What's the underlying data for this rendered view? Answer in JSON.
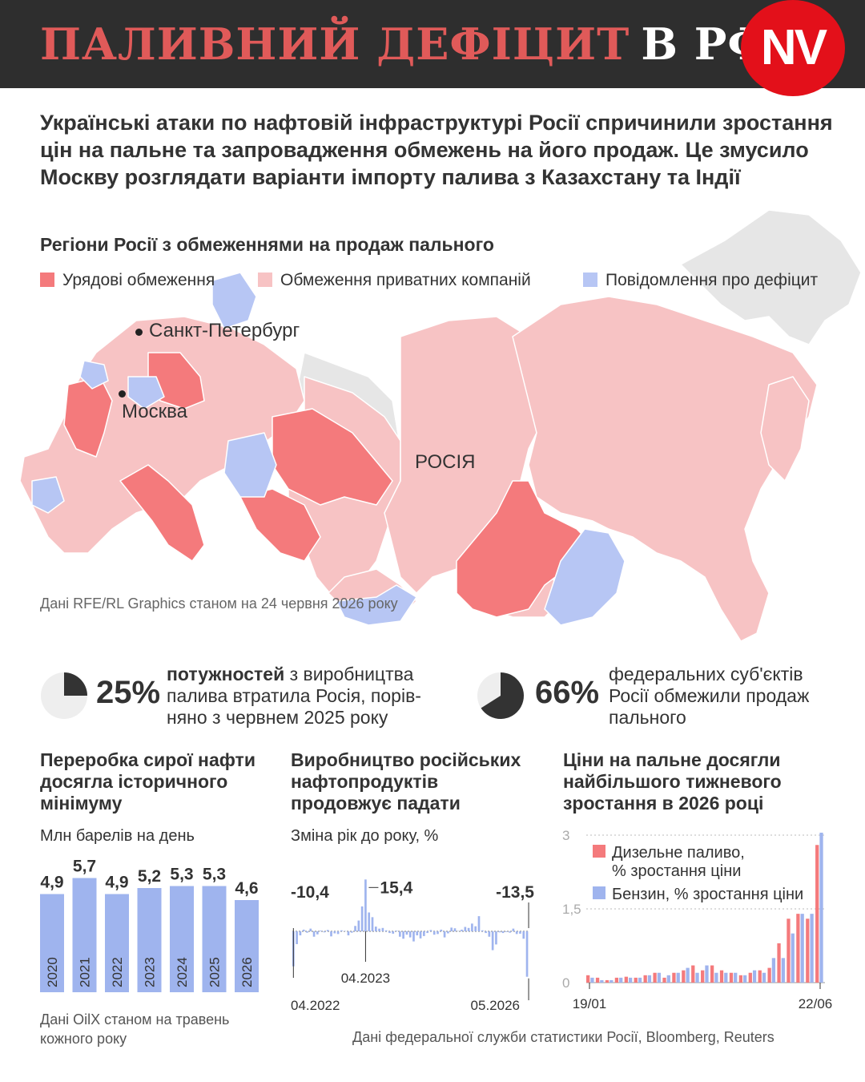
{
  "header": {
    "title_red": "ПАЛИВНИЙ ДЕФІЦИТ",
    "title_white": "В РФ",
    "logo": "NV"
  },
  "lead": "Українські атаки по нафтовій інфраструктурі Росії спричинили зростання цін на пальне та запровадження обмежень на його продаж. Це змусило Москву розглядати варіанти імпорту палива з Казахстану та Індії",
  "map": {
    "title": "Регіони Росії з обмеженнями на продаж пального",
    "legend": [
      {
        "label": "Урядові обмеження",
        "color": "#f47a7c"
      },
      {
        "label": "Обмеження приватних компаній",
        "color": "#f7c3c4"
      },
      {
        "label": "Повідомлення про дефіцит",
        "color": "#b7c6f4"
      }
    ],
    "labels": {
      "spb": "Санкт-Петербург",
      "moscow": "Москва",
      "russia": "РОСІЯ"
    },
    "source": "Дані RFE/RL Graphics станом на 24 червня 2026 року",
    "colors": {
      "other": "#e6e6e6"
    }
  },
  "stats": [
    {
      "value": "25%",
      "fraction": 0.25,
      "bold": "потужностей",
      "text": " з виробництва палива втратила Росія, порів-няно з червнем 2025 року"
    },
    {
      "value": "66%",
      "fraction": 0.66,
      "bold": "",
      "text": "федеральних суб'єктів Росії обмежили продаж пального"
    }
  ],
  "chart_data": [
    {
      "type": "bar",
      "title": "Переробка сирої нафти досягла історичного мінімуму",
      "subtitle": "Млн барелів на день",
      "categories": [
        "2020",
        "2021",
        "2022",
        "2023",
        "2024",
        "2025",
        "2026"
      ],
      "values": [
        4.9,
        5.7,
        4.9,
        5.2,
        5.3,
        5.3,
        4.6
      ],
      "value_labels": [
        "4,9",
        "5,7",
        "4,9",
        "5,2",
        "5,3",
        "5,3",
        "4,6"
      ],
      "color": "#9fb4ee",
      "source": "Дані OilX станом на травень кожного року"
    },
    {
      "type": "bar",
      "title": "Виробництво російських нафтопродуктів продовжує падати",
      "subtitle": "Зміна рік до року, %",
      "x_start": "04.2022",
      "x_end": "05.2026",
      "values": [
        -10.4,
        -3.8,
        -1.2,
        0.5,
        -0.4,
        0.8,
        -1.6,
        -0.9,
        0.2,
        -0.3,
        0.4,
        -1.5,
        -0.6,
        -0.8,
        0.3,
        0.1,
        -1.2,
        -0.4,
        1.6,
        3.2,
        7.4,
        15.4,
        5.6,
        4.2,
        1.4,
        0.8,
        1.0,
        0.3,
        -0.5,
        -0.7,
        0.2,
        -1.6,
        -2.2,
        -1.0,
        -1.8,
        -3.0,
        -1.2,
        -2.1,
        -1.4,
        -0.5,
        0.4,
        -1.0,
        -0.8,
        0.5,
        -1.8,
        -0.6,
        1.1,
        0.9,
        0.1,
        0.5,
        1.3,
        1.0,
        2.3,
        1.5,
        4.5,
        0.3,
        -0.5,
        -1.6,
        -5.6,
        -3.9,
        -0.3,
        -0.5,
        -0.2,
        -0.4,
        0.8,
        -0.8,
        -0.7,
        -2.2,
        -13.5
      ],
      "annotations": [
        {
          "label": "-10,4"
        },
        {
          "label": "15,4",
          "x": "04.2023"
        },
        {
          "label": "-13,5"
        }
      ],
      "ylim": [
        -14,
        16
      ],
      "color": "#9fb4ee"
    },
    {
      "type": "bar",
      "title": "Ціни на пальне досягли найбільшого тижневого зростання в 2026 році",
      "x_start": "19/01",
      "x_end": "22/06",
      "yticks": [
        "3",
        "1,5",
        "0"
      ],
      "ylim": [
        0,
        3
      ],
      "series": [
        {
          "name": "Дизельне паливо, % зростання ціни",
          "color": "#f47a7c",
          "values": [
            0.15,
            0.1,
            0.05,
            0.1,
            0.12,
            0.1,
            0.15,
            0.2,
            0.1,
            0.2,
            0.25,
            0.35,
            0.25,
            0.35,
            0.25,
            0.2,
            0.15,
            0.2,
            0.25,
            0.3,
            0.8,
            1.3,
            1.4,
            1.3,
            2.8
          ]
        },
        {
          "name": "Бензин, % зростання ціни",
          "color": "#9fb4ee",
          "values": [
            0.1,
            0.05,
            0.05,
            0.1,
            0.1,
            0.1,
            0.15,
            0.2,
            0.15,
            0.2,
            0.3,
            0.2,
            0.35,
            0.2,
            0.2,
            0.2,
            0.15,
            0.25,
            0.2,
            0.5,
            0.5,
            1.0,
            1.4,
            1.4,
            3.05
          ]
        }
      ]
    }
  ],
  "footer_source": "Дані федеральної служби статистики Росії, Bloomberg, Reuters"
}
